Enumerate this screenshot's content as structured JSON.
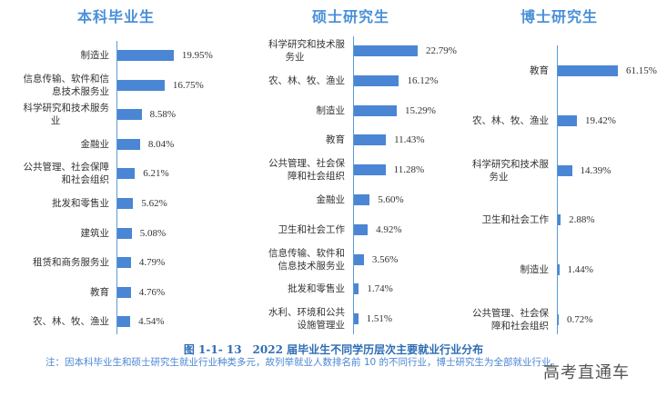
{
  "chart_data": [
    {
      "type": "bar",
      "orientation": "horizontal",
      "title": "本科毕业生",
      "categories": [
        "制造业",
        "信息传输、软件和信息技术服务业",
        "科学研究和技术服务业",
        "金融业",
        "公共管理、社会保障和社会组织",
        "批发和零售业",
        "建筑业",
        "租赁和商务服务业",
        "教育",
        "农、林、牧、渔业"
      ],
      "category_lines": [
        [
          "制造业"
        ],
        [
          "信息传输、软件和信",
          "息技术服务业"
        ],
        [
          "科学研究和技术服务",
          "业"
        ],
        [
          "金融业"
        ],
        [
          "公共管理、社会保障",
          "和社会组织"
        ],
        [
          "批发和零售业"
        ],
        [
          "建筑业"
        ],
        [
          "租赁和商务服务业"
        ],
        [
          "教育"
        ],
        [
          "农、林、牧、渔业"
        ]
      ],
      "values": [
        19.95,
        16.75,
        8.58,
        8.04,
        6.21,
        5.62,
        5.08,
        4.79,
        4.76,
        4.54
      ],
      "labels": [
        "19.95%",
        "16.75%",
        "8.58%",
        "8.04%",
        "6.21%",
        "5.62%",
        "5.08%",
        "4.79%",
        "4.76%",
        "4.54%"
      ],
      "xlabel": "",
      "ylabel": "",
      "grid": false,
      "legend": "none",
      "unit": "%"
    },
    {
      "type": "bar",
      "orientation": "horizontal",
      "title": "硕士研究生",
      "categories": [
        "科学研究和技术服务业",
        "农、林、牧、渔业",
        "制造业",
        "教育",
        "公共管理、社会保障和社会组织",
        "金融业",
        "卫生和社会工作",
        "信息传输、软件和信息技术服务业",
        "批发和零售业",
        "水利、环境和公共设施管理业"
      ],
      "category_lines": [
        [
          "科学研究和技术服",
          "务业"
        ],
        [
          "农、林、牧、渔业"
        ],
        [
          "制造业"
        ],
        [
          "教育"
        ],
        [
          "公共管理、社会保",
          "障和社会组织"
        ],
        [
          "金融业"
        ],
        [
          "卫生和社会工作"
        ],
        [
          "信息传输、软件和",
          "信息技术服务业"
        ],
        [
          "批发和零售业"
        ],
        [
          "水利、环境和公共",
          "设施管理业"
        ]
      ],
      "values": [
        22.79,
        16.12,
        15.29,
        11.43,
        11.28,
        5.6,
        4.92,
        3.56,
        1.74,
        1.51
      ],
      "labels": [
        "22.79%",
        "16.12%",
        "15.29%",
        "11.43%",
        "11.28%",
        "5.60%",
        "4.92%",
        "3.56%",
        "1.74%",
        "1.51%"
      ],
      "xlabel": "",
      "ylabel": "",
      "grid": false,
      "legend": "none",
      "unit": "%"
    },
    {
      "type": "bar",
      "orientation": "horizontal",
      "title": "博士研究生",
      "categories": [
        "教育",
        "农、林、牧、渔业",
        "科学研究和技术服务业",
        "卫生和社会工作",
        "制造业",
        "公共管理、社会保障和社会组织"
      ],
      "category_lines": [
        [
          "教育"
        ],
        [
          "农、林、牧、渔业"
        ],
        [
          "科学研究和技术服",
          "务业"
        ],
        [
          "卫生和社会工作"
        ],
        [
          "制造业"
        ],
        [
          "公共管理、社会保",
          "障和社会组织"
        ]
      ],
      "values": [
        61.15,
        19.42,
        14.39,
        2.88,
        1.44,
        0.72
      ],
      "labels": [
        "61.15%",
        "19.42%",
        "14.39%",
        "2.88%",
        "1.44%",
        "0.72%"
      ],
      "xlabel": "",
      "ylabel": "",
      "grid": false,
      "legend": "none",
      "unit": "%"
    }
  ],
  "figure": {
    "caption": "图 1-1- 13　2022 届毕业生不同学历层次主要就业行业分布",
    "note": "注：因本科毕业生和硕士研究生就业行业种类多元，故列举就业人数排名前 10 的不同行业，博士研究生为全部就业行业。",
    "watermark": "高考直通车"
  },
  "colors": {
    "bar": "#4a86d4",
    "axis": "#5b9bd5",
    "title": "#4a90d9",
    "caption": "#2e6db4",
    "note": "#4a86d4"
  }
}
